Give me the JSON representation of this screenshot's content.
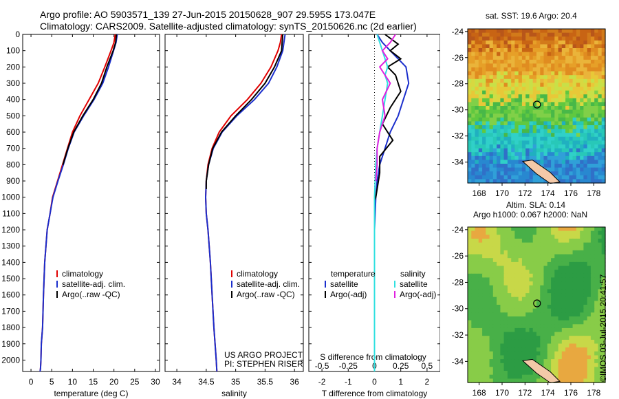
{
  "header": {
    "line1": "Argo profile: AO 5903571_139 27-Jun-2015 20150628_907 29.595S 173.047E",
    "line2": "Climatology: CARS2009. Satellite-adjusted climatology: synTS_20150626.nc (2d earlier)"
  },
  "map_labels": {
    "sst": "sat. SST: 19.6 Argo: 20.4",
    "sla1": "Altim. SLA: 0.14",
    "sla2": "Argo h1000: 0.067 h2000: NaN"
  },
  "credit": "©IMOS 03-Jul-2015 20:41:57",
  "project": {
    "line1": "US ARGO PROJECT",
    "line2": "PI: STEPHEN RISER"
  },
  "colors": {
    "climatology": "#e00000",
    "satellite": "#1a2ecc",
    "argo": "#000000",
    "sal_satellite": "#30e0e0",
    "sal_argo": "#e020e0"
  },
  "chart_data": [
    {
      "type": "line",
      "xlabel": "temperature (deg C)",
      "ylabel": "",
      "xlim": [
        -2,
        31
      ],
      "ylim": [
        2070,
        0
      ],
      "xticks": [
        0,
        5,
        10,
        15,
        20,
        25,
        30
      ],
      "yticks": [
        0,
        100,
        200,
        300,
        400,
        500,
        600,
        700,
        800,
        900,
        1000,
        1100,
        1200,
        1300,
        1400,
        1500,
        1600,
        1700,
        1800,
        1900,
        2000
      ],
      "legend": [
        "climatology",
        "satellite-adj. clim.",
        "Argo(..raw -QC)"
      ],
      "series": [
        {
          "name": "climatology",
          "color": "#e00000",
          "x": [
            20.3,
            20.0,
            19.3,
            17.8,
            16.2,
            14.0,
            11.8,
            10.0,
            8.8,
            7.6,
            6.4,
            5.2,
            4.6,
            3.9,
            3.3,
            3.0,
            2.8,
            2.5,
            2.4,
            2.3,
            2.2
          ],
          "y": [
            0,
            50,
            100,
            200,
            300,
            400,
            500,
            600,
            700,
            800,
            900,
            1000,
            1100,
            1200,
            1400,
            1600,
            1800,
            1900,
            2000,
            2050,
            2070
          ]
        },
        {
          "name": "satellite-adj. clim.",
          "color": "#1a2ecc",
          "x": [
            20.8,
            20.5,
            19.9,
            18.7,
            17.3,
            15.2,
            12.7,
            10.4,
            9.0,
            7.8,
            6.5,
            5.3,
            4.6,
            3.9,
            3.3,
            3.0,
            2.8,
            2.5,
            2.4,
            2.3,
            2.2
          ],
          "y": [
            0,
            50,
            100,
            200,
            300,
            400,
            500,
            600,
            700,
            800,
            900,
            1000,
            1100,
            1200,
            1400,
            1600,
            1800,
            1900,
            2000,
            2050,
            2070
          ]
        },
        {
          "name": "Argo(..raw -QC)",
          "color": "#000000",
          "x": [
            20.6,
            20.4,
            19.8,
            18.3,
            17.0,
            15.0,
            12.5,
            10.3,
            8.9,
            7.7
          ],
          "y": [
            0,
            50,
            100,
            200,
            300,
            400,
            500,
            600,
            700,
            800
          ]
        }
      ]
    },
    {
      "type": "line",
      "xlabel": "salinity",
      "ylabel": "",
      "xlim": [
        33.8,
        36.15
      ],
      "ylim": [
        2070,
        0
      ],
      "xticks": [
        34,
        34.5,
        35,
        35.5,
        36
      ],
      "legend": [
        "climatology",
        "satellite-adj. clim.",
        "Argo(..raw -QC)"
      ],
      "series": [
        {
          "name": "climatology",
          "color": "#e00000",
          "x": [
            35.78,
            35.76,
            35.72,
            35.6,
            35.43,
            35.2,
            34.92,
            34.72,
            34.6,
            34.53,
            34.5,
            34.49,
            34.5,
            34.53,
            34.57,
            34.6,
            34.63,
            34.65,
            34.67,
            34.68
          ],
          "y": [
            0,
            50,
            100,
            200,
            300,
            400,
            500,
            600,
            700,
            800,
            900,
            1000,
            1100,
            1200,
            1400,
            1600,
            1800,
            1900,
            2000,
            2070
          ]
        },
        {
          "name": "satellite-adj. clim.",
          "color": "#1a2ecc",
          "x": [
            35.84,
            35.82,
            35.8,
            35.7,
            35.56,
            35.32,
            35.02,
            34.77,
            34.62,
            34.54,
            34.5,
            34.49,
            34.5,
            34.53,
            34.57,
            34.6,
            34.63,
            34.65,
            34.67,
            34.68
          ],
          "y": [
            0,
            50,
            100,
            200,
            300,
            400,
            500,
            600,
            700,
            800,
            900,
            1000,
            1100,
            1200,
            1400,
            1600,
            1800,
            1900,
            2000,
            2070
          ]
        },
        {
          "name": "Argo(..raw -QC)",
          "color": "#000000",
          "x": [
            35.8,
            35.79,
            35.78,
            35.66,
            35.5,
            35.27,
            35.0,
            34.76,
            34.61,
            34.54,
            34.5,
            34.5
          ],
          "y": [
            0,
            50,
            100,
            200,
            300,
            400,
            500,
            600,
            700,
            800,
            900,
            950
          ]
        }
      ]
    },
    {
      "type": "line",
      "xlabel": "T difference from climatology",
      "title": "S difference from climatology",
      "xlim": [
        -2.5,
        2.5
      ],
      "ylim": [
        2070,
        0
      ],
      "xticks": [
        -2,
        -1,
        0,
        1,
        2
      ],
      "top_ticks": [
        "-0.5",
        "-0.25",
        "0",
        "0.25",
        "0.5"
      ],
      "legend_titles": [
        "temperature",
        "salinity"
      ],
      "legend": [
        "satellite",
        "Argo(-adj)",
        "satellite",
        "Argo(-adj)"
      ],
      "series": [
        {
          "name": "satellite",
          "group": "temperature",
          "color": "#1a2ecc",
          "x": [
            0.1,
            0.3,
            0.6,
            0.9,
            1.2,
            1.3,
            1.1,
            0.9,
            0.6,
            0.4,
            0.2,
            0.1,
            0.05,
            0,
            0,
            0,
            0,
            0
          ],
          "y": [
            0,
            50,
            100,
            150,
            200,
            300,
            400,
            500,
            600,
            700,
            800,
            900,
            1000,
            1200,
            1400,
            1600,
            1800,
            2070
          ]
        },
        {
          "name": "Argo(-adj)",
          "group": "temperature",
          "color": "#000000",
          "x": [
            0.4,
            0.9,
            0.6,
            1.0,
            0.5,
            0.8,
            1.0,
            0.6,
            0.3,
            0.7,
            0.2,
            0.2,
            0.1,
            0.05,
            0
          ],
          "y": [
            0,
            60,
            100,
            150,
            200,
            250,
            350,
            450,
            550,
            650,
            750,
            850,
            950,
            1000,
            1020
          ]
        },
        {
          "name": "satellite",
          "group": "salinity",
          "color": "#30e0e0",
          "x": [
            0.1,
            0.3,
            0.5,
            0.4,
            0.5,
            0.4,
            0.3,
            0.2,
            0.1,
            0.05,
            0,
            0,
            0,
            0,
            0
          ],
          "y": [
            0,
            100,
            200,
            250,
            300,
            400,
            500,
            600,
            700,
            800,
            1000,
            1200,
            1400,
            1800,
            2070
          ]
        },
        {
          "name": "Argo(-adj)",
          "group": "salinity",
          "color": "#e020e0",
          "x": [
            0.8,
            0.6,
            0.3,
            0.5,
            0.2,
            0.6,
            0.3,
            0.4,
            0.2,
            0.1,
            0.1,
            0.05
          ],
          "y": [
            0,
            50,
            100,
            150,
            200,
            300,
            400,
            500,
            600,
            700,
            800,
            900
          ]
        }
      ]
    },
    {
      "type": "heatmap",
      "title": "sat. SST: 19.6 Argo: 20.4",
      "xticks": [
        168,
        170,
        172,
        174,
        176,
        178
      ],
      "yticks": [
        -24,
        -26,
        -28,
        -30,
        -32,
        -34
      ]
    },
    {
      "type": "heatmap",
      "title": "Altim. SLA: 0.14",
      "xticks": [
        168,
        170,
        172,
        174,
        176,
        178
      ],
      "yticks": [
        -24,
        -26,
        -28,
        -30,
        -32,
        -34
      ]
    }
  ]
}
